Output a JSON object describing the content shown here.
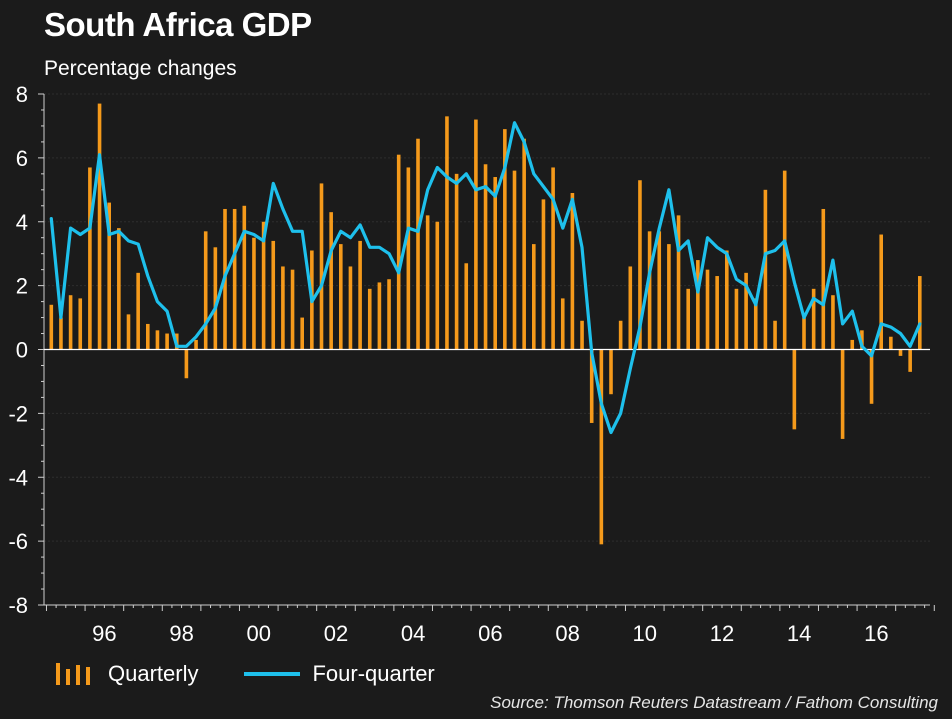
{
  "header": {
    "title": "South Africa GDP",
    "subtitle": "Percentage changes"
  },
  "legend": {
    "quarterly": "Quarterly",
    "four_quarter": "Four-quarter"
  },
  "source": "Source: Thomson Reuters Datastream / Fathom Consulting",
  "colors": {
    "background": "#1b1b1b",
    "quarterly": "#f59a1b",
    "four_quarter": "#1ec0ec",
    "text": "#ffffff"
  },
  "chart_data": {
    "type": "bar",
    "title": "South Africa GDP",
    "subtitle": "Percentage changes",
    "ylim": [
      -8,
      8
    ],
    "yticks": [
      8,
      6,
      4,
      2,
      0,
      -2,
      -4,
      -6,
      -8
    ],
    "x_start": "1995 Q1",
    "x_tick_labels": [
      "96",
      "98",
      "00",
      "02",
      "04",
      "06",
      "08",
      "10",
      "12",
      "14",
      "16"
    ],
    "grid": true,
    "legend_position": "bottom-left",
    "series": [
      {
        "name": "Quarterly",
        "type": "bar",
        "values": [
          1.4,
          1.0,
          1.7,
          1.6,
          5.7,
          7.7,
          4.6,
          3.8,
          1.1,
          2.4,
          0.8,
          0.6,
          0.5,
          0.5,
          -0.9,
          0.3,
          3.7,
          3.2,
          4.4,
          4.4,
          4.5,
          3.5,
          4.0,
          3.4,
          2.6,
          2.5,
          1.0,
          3.1,
          5.2,
          4.3,
          3.3,
          2.6,
          3.4,
          1.9,
          2.1,
          2.2,
          6.1,
          5.7,
          6.6,
          4.2,
          4.0,
          7.3,
          5.5,
          2.7,
          7.2,
          5.8,
          5.4,
          6.9,
          5.6,
          6.6,
          3.3,
          4.7,
          5.7,
          1.6,
          4.9,
          0.9,
          -2.3,
          -6.1,
          -1.4,
          0.9,
          2.6,
          5.3,
          3.7,
          3.7,
          3.3,
          4.2,
          1.9,
          2.8,
          2.5,
          2.3,
          3.1,
          1.9,
          2.4,
          1.6,
          5.0,
          0.9,
          5.6,
          -2.5,
          1.0,
          1.9,
          4.4,
          1.7,
          -2.8,
          0.3,
          0.6,
          -1.7,
          3.6,
          0.4,
          -0.2,
          -0.7,
          2.3
        ]
      },
      {
        "name": "Four-quarter",
        "type": "line",
        "values": [
          4.1,
          1.0,
          3.8,
          3.6,
          3.8,
          6.1,
          3.6,
          3.7,
          3.4,
          3.3,
          2.3,
          1.5,
          1.2,
          0.1,
          0.1,
          0.4,
          0.8,
          1.3,
          2.3,
          3.0,
          3.7,
          3.6,
          3.4,
          5.2,
          4.4,
          3.7,
          3.7,
          1.5,
          2.0,
          3.1,
          3.7,
          3.5,
          3.9,
          3.2,
          3.2,
          3.0,
          2.4,
          3.8,
          3.7,
          5.0,
          5.7,
          5.4,
          5.2,
          5.5,
          5.0,
          5.1,
          4.8,
          5.7,
          7.1,
          6.5,
          5.5,
          5.1,
          4.7,
          3.8,
          4.7,
          3.2,
          -0.1,
          -1.7,
          -2.6,
          -2.0,
          -0.6,
          0.7,
          2.4,
          3.8,
          5.0,
          3.1,
          3.4,
          1.8,
          3.5,
          3.2,
          3.0,
          2.2,
          2.0,
          1.4,
          3.0,
          3.1,
          3.4,
          2.1,
          1.0,
          1.6,
          1.4,
          2.8,
          0.8,
          1.2,
          0.1,
          -0.2,
          0.8,
          0.7,
          0.5,
          0.1,
          0.8
        ]
      }
    ]
  }
}
